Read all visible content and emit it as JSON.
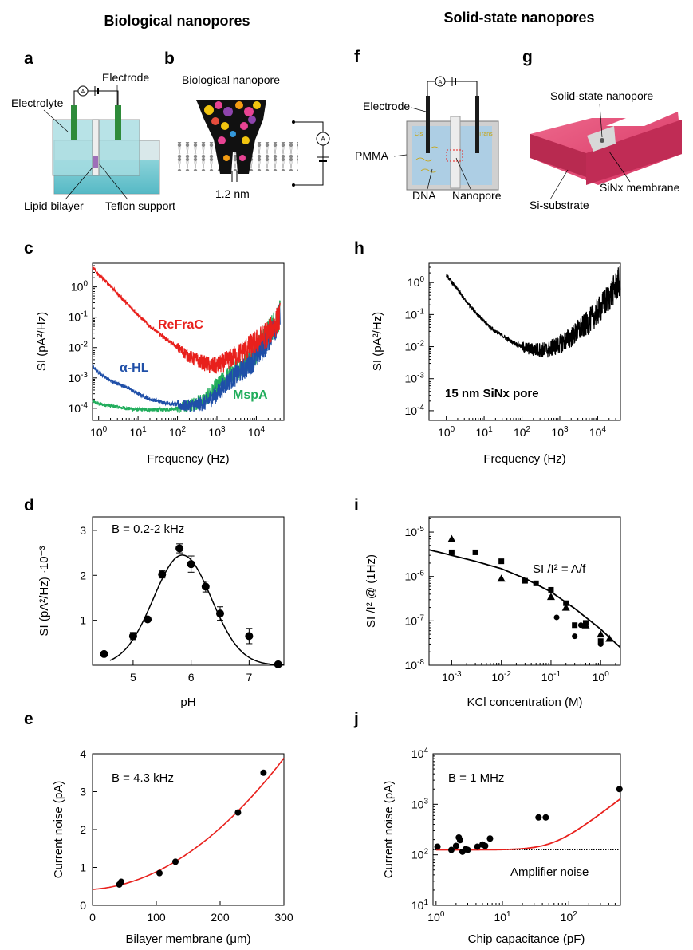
{
  "headers": {
    "left": "Biological nanopores",
    "right": "Solid-state nanopores"
  },
  "panel_letters": [
    "a",
    "b",
    "c",
    "d",
    "e",
    "f",
    "g",
    "h",
    "i",
    "j"
  ],
  "schematics": {
    "a": {
      "electrode": "Electrode",
      "electrolyte": "Electrolyte",
      "lipid": "Lipid bilayer",
      "teflon": "Teflon support",
      "ammeter": "A"
    },
    "b": {
      "title": "Biological nanopore",
      "size": "1.2 nm",
      "ammeter": "A"
    },
    "f": {
      "electrode": "Electrode",
      "pmma": "PMMA",
      "dna": "DNA",
      "nanopore": "Nanopore",
      "ammeter": "A",
      "cis": "Cis",
      "trans": "Trans"
    },
    "g": {
      "pore": "Solid-state nanopore",
      "membrane": "SiNx membrane",
      "substrate": "Si-substrate"
    }
  },
  "colors": {
    "red": "#e8201c",
    "blue": "#1f4fa8",
    "green": "#21ad5c",
    "pink": "#d6335d",
    "teal": "#6cc7cf"
  },
  "chart_data": [
    {
      "panel": "c",
      "type": "line",
      "xlabel": "Frequency (Hz)",
      "ylabel": "SI (pA²/Hz)",
      "xscale": "log",
      "yscale": "log",
      "xlim": [
        0.7,
        50000
      ],
      "ylim": [
        4e-05,
        6
      ],
      "xticks": [
        1,
        10,
        100,
        1000,
        10000
      ],
      "yticks": [
        0.0001,
        0.001,
        0.01,
        0.1,
        1
      ],
      "series": [
        {
          "name": "ReFraC",
          "color": "#e8201c",
          "noisy": true,
          "x": [
            0.7,
            1,
            2,
            3,
            5,
            10,
            20,
            50,
            100,
            200,
            500,
            700,
            1000,
            2000,
            5000,
            10000,
            20000,
            40000
          ],
          "y": [
            4.5,
            2.5,
            1.1,
            0.6,
            0.3,
            0.12,
            0.05,
            0.02,
            0.01,
            0.005,
            0.003,
            0.0025,
            0.0025,
            0.004,
            0.008,
            0.015,
            0.03,
            0.1
          ]
        },
        {
          "name": "α-HL",
          "color": "#1f4fa8",
          "noisy": true,
          "x": [
            0.7,
            1,
            2,
            5,
            10,
            20,
            50,
            100,
            200,
            500,
            1000,
            2000,
            5000,
            10000,
            20000,
            40000
          ],
          "y": [
            0.0025,
            0.0015,
            0.0008,
            0.0005,
            0.0003,
            0.0002,
            0.00015,
            0.00013,
            0.00012,
            0.00015,
            0.0003,
            0.0008,
            0.002,
            0.005,
            0.02,
            0.1
          ]
        },
        {
          "name": "MspA",
          "color": "#21ad5c",
          "noisy": true,
          "x": [
            0.7,
            1,
            2,
            5,
            10,
            20,
            50,
            100,
            200,
            500,
            1000,
            2000,
            5000,
            10000,
            20000,
            40000
          ],
          "y": [
            0.00017,
            0.00014,
            0.00012,
            0.0001,
            9e-05,
            9e-05,
            9e-05,
            0.0001,
            0.00012,
            0.0002,
            0.0005,
            0.0012,
            0.003,
            0.008,
            0.03,
            0.12
          ]
        }
      ]
    },
    {
      "panel": "h",
      "type": "line",
      "xlabel": "Frequency (Hz)",
      "ylabel": "SI (pA²/Hz)",
      "xscale": "log",
      "yscale": "log",
      "xlim": [
        0.35,
        40000
      ],
      "ylim": [
        5e-05,
        4
      ],
      "xticks": [
        1,
        10,
        100,
        1000,
        10000
      ],
      "yticks": [
        0.0001,
        0.001,
        0.01,
        0.1,
        1
      ],
      "annotation": "15 nm SiNx pore",
      "series": [
        {
          "color": "#000000",
          "noisy": true,
          "x": [
            1,
            2,
            3,
            5,
            10,
            20,
            50,
            100,
            200,
            500,
            1000,
            2000,
            5000,
            10000,
            20000,
            40000
          ],
          "y": [
            1.7,
            0.6,
            0.3,
            0.15,
            0.06,
            0.03,
            0.015,
            0.01,
            0.008,
            0.008,
            0.012,
            0.02,
            0.05,
            0.12,
            0.35,
            1.2
          ]
        }
      ]
    },
    {
      "panel": "d",
      "type": "scatter",
      "xlabel": "pH",
      "ylabel": "SI (pA²/Hz) ·10⁻³",
      "annotation": "B = 0.2-2 kHz",
      "xlim": [
        4.3,
        7.6
      ],
      "ylim": [
        0,
        3.3
      ],
      "xticks": [
        5,
        6,
        7
      ],
      "yticks": [
        1,
        2,
        3
      ],
      "points": {
        "x": [
          4.5,
          5.0,
          5.25,
          5.5,
          5.8,
          6.0,
          6.25,
          6.5,
          7.0,
          7.5
        ],
        "y": [
          0.25,
          0.65,
          1.02,
          2.02,
          2.6,
          2.25,
          1.75,
          1.15,
          0.65,
          0.02
        ],
        "err": [
          0,
          0.08,
          0,
          0.08,
          0.1,
          0.18,
          0.12,
          0.15,
          0.17,
          0
        ]
      },
      "fit": {
        "type": "gaussian",
        "amp": 2.45,
        "mu": 5.85,
        "sigma": 0.5,
        "color": "#000000"
      }
    },
    {
      "panel": "e",
      "type": "scatter",
      "xlabel": "Bilayer membrane (μm)",
      "ylabel": "Current noise (pA)",
      "annotation": "B = 4.3 kHz",
      "xlim": [
        0,
        300
      ],
      "ylim": [
        0,
        4
      ],
      "xticks": [
        0,
        100,
        200,
        300
      ],
      "yticks": [
        0,
        1,
        2,
        3,
        4
      ],
      "points": {
        "x": [
          42,
          45,
          105,
          130,
          228,
          268
        ],
        "y": [
          0.55,
          0.62,
          0.85,
          1.15,
          2.45,
          3.5
        ]
      },
      "fit": {
        "type": "quadratic",
        "c0": 0.42,
        "c1": 0.0012,
        "c2": 3.45e-05,
        "color": "#e8201c"
      }
    },
    {
      "panel": "i",
      "type": "scatter",
      "xlabel": "KCl concentration (M)",
      "ylabel": "SI /I² @ (1Hz)",
      "annotation": "SI /I² = A/f",
      "xscale": "log",
      "yscale": "log",
      "xlim": [
        0.00035,
        2.5
      ],
      "ylim": [
        1e-08,
        2.2e-05
      ],
      "xticks": [
        0.001,
        0.01,
        0.1,
        1
      ],
      "yticks": [
        1e-08,
        1e-07,
        1e-06,
        1e-05
      ],
      "series": [
        {
          "marker": "triangle",
          "x": [
            0.001,
            0.01,
            0.1,
            0.2,
            0.5,
            1,
            1.5
          ],
          "y": [
            7e-06,
            9e-07,
            3.5e-07,
            2e-07,
            8e-08,
            5e-08,
            4e-08
          ]
        },
        {
          "marker": "square",
          "x": [
            0.001,
            0.003,
            0.01,
            0.03,
            0.05,
            0.1,
            0.2,
            0.3,
            0.5,
            1
          ],
          "y": [
            3.5e-06,
            3.5e-06,
            2.2e-06,
            8e-07,
            7e-07,
            5e-07,
            2.5e-07,
            8e-08,
            9e-08,
            3.5e-08
          ]
        },
        {
          "marker": "circle",
          "x": [
            0.13,
            0.3,
            0.4,
            1
          ],
          "y": [
            1.2e-07,
            4.5e-08,
            8e-08,
            3e-08
          ]
        }
      ],
      "fit": {
        "type": "power",
        "color": "#000000",
        "x": [
          0.00035,
          0.001,
          0.003,
          0.01,
          0.03,
          0.1,
          0.3,
          1,
          2.5
        ],
        "y": [
          4e-06,
          3e-06,
          2.2e-06,
          1.5e-06,
          9e-07,
          4.5e-07,
          1.9e-07,
          6.5e-08,
          2.5e-08
        ]
      }
    },
    {
      "panel": "j",
      "type": "scatter",
      "xlabel": "Chip capacitance (pF)",
      "ylabel": "Current noise (pA)",
      "annotation": "B = 1 MHz",
      "reference_label": "Amplifier noise",
      "xscale": "log",
      "yscale": "log",
      "xlim": [
        0.9,
        600
      ],
      "ylim": [
        10,
        10000
      ],
      "xticks": [
        1,
        10,
        100
      ],
      "yticks": [
        10,
        100,
        1000,
        10000
      ],
      "points": {
        "x": [
          1.05,
          1.7,
          2.0,
          2.2,
          2.3,
          2.5,
          2.8,
          3.0,
          4.2,
          5.0,
          5.5,
          6.5,
          35,
          45,
          580
        ],
        "y": [
          145,
          125,
          150,
          220,
          195,
          115,
          130,
          125,
          145,
          160,
          150,
          210,
          550,
          550,
          2000
        ]
      },
      "fit": {
        "type": "sqrt_quad",
        "base": 125,
        "k": 3.8e-05,
        "color": "#e8201c"
      },
      "reference": {
        "y": 125,
        "style": "dotted"
      }
    }
  ]
}
